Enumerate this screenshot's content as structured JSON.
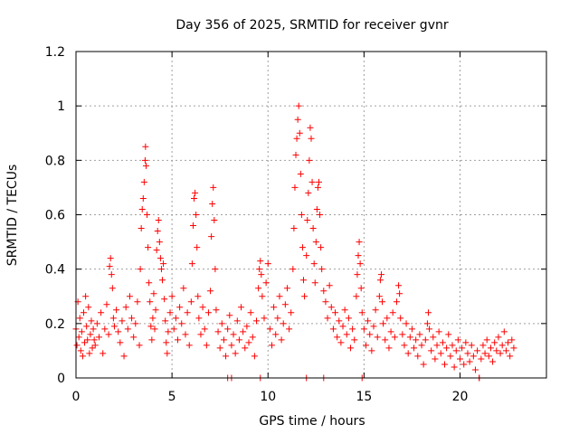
{
  "chart_data": {
    "type": "scatter",
    "title": "Day 356 of 2025, SRMTID for receiver gvnr",
    "xlabel": "GPS time / hours",
    "ylabel": "SRMTID / TECUs",
    "xlim": [
      0,
      24.5
    ],
    "ylim": [
      0,
      1.2
    ],
    "xticks": [
      0,
      5,
      10,
      15,
      20
    ],
    "xtick_labels": [
      "0",
      "5",
      "10",
      "15",
      "20"
    ],
    "yticks": [
      0,
      0.2,
      0.4,
      0.6,
      0.8,
      1,
      1.2
    ],
    "ytick_labels": [
      "0",
      "0.2",
      "0.4",
      "0.6",
      "0.8",
      "1",
      "1.2"
    ],
    "grid": true,
    "marker": "plus",
    "series": [
      {
        "name": "SRMTID",
        "color": "#ff0000",
        "points": [
          [
            0.0,
            0.18
          ],
          [
            0.05,
            0.12
          ],
          [
            0.1,
            0.28
          ],
          [
            0.15,
            0.15
          ],
          [
            0.2,
            0.22
          ],
          [
            0.25,
            0.1
          ],
          [
            0.3,
            0.17
          ],
          [
            0.35,
            0.08
          ],
          [
            0.4,
            0.24
          ],
          [
            0.45,
            0.13
          ],
          [
            0.5,
            0.3
          ],
          [
            0.55,
            0.19
          ],
          [
            0.6,
            0.14
          ],
          [
            0.65,
            0.26
          ],
          [
            0.7,
            0.09
          ],
          [
            0.75,
            0.16
          ],
          [
            0.8,
            0.21
          ],
          [
            0.85,
            0.11
          ],
          [
            0.9,
            0.18
          ],
          [
            0.95,
            0.14
          ],
          [
            1.0,
            0.12
          ],
          [
            1.1,
            0.2
          ],
          [
            1.2,
            0.15
          ],
          [
            1.3,
            0.24
          ],
          [
            1.4,
            0.09
          ],
          [
            1.5,
            0.18
          ],
          [
            1.6,
            0.27
          ],
          [
            1.7,
            0.16
          ],
          [
            1.75,
            0.41
          ],
          [
            1.8,
            0.44
          ],
          [
            1.85,
            0.38
          ],
          [
            1.9,
            0.33
          ],
          [
            1.95,
            0.22
          ],
          [
            2.0,
            0.19
          ],
          [
            2.1,
            0.25
          ],
          [
            2.2,
            0.17
          ],
          [
            2.3,
            0.13
          ],
          [
            2.4,
            0.21
          ],
          [
            2.5,
            0.08
          ],
          [
            2.6,
            0.26
          ],
          [
            2.7,
            0.18
          ],
          [
            2.8,
            0.3
          ],
          [
            2.9,
            0.22
          ],
          [
            3.0,
            0.15
          ],
          [
            3.1,
            0.2
          ],
          [
            3.2,
            0.28
          ],
          [
            3.3,
            0.12
          ],
          [
            3.35,
            0.4
          ],
          [
            3.4,
            0.55
          ],
          [
            3.45,
            0.62
          ],
          [
            3.5,
            0.66
          ],
          [
            3.55,
            0.72
          ],
          [
            3.6,
            0.8
          ],
          [
            3.62,
            0.85
          ],
          [
            3.65,
            0.78
          ],
          [
            3.7,
            0.6
          ],
          [
            3.75,
            0.48
          ],
          [
            3.8,
            0.35
          ],
          [
            3.85,
            0.28
          ],
          [
            3.9,
            0.19
          ],
          [
            3.95,
            0.14
          ],
          [
            4.0,
            0.22
          ],
          [
            4.05,
            0.31
          ],
          [
            4.1,
            0.18
          ],
          [
            4.15,
            0.25
          ],
          [
            4.2,
            0.47
          ],
          [
            4.25,
            0.54
          ],
          [
            4.3,
            0.58
          ],
          [
            4.35,
            0.5
          ],
          [
            4.4,
            0.44
          ],
          [
            4.45,
            0.4
          ],
          [
            4.5,
            0.36
          ],
          [
            4.55,
            0.42
          ],
          [
            4.6,
            0.29
          ],
          [
            4.65,
            0.21
          ],
          [
            4.7,
            0.13
          ],
          [
            4.75,
            0.09
          ],
          [
            4.8,
            0.17
          ],
          [
            4.9,
            0.24
          ],
          [
            5.0,
            0.3
          ],
          [
            5.1,
            0.18
          ],
          [
            5.2,
            0.22
          ],
          [
            5.3,
            0.14
          ],
          [
            5.4,
            0.26
          ],
          [
            5.5,
            0.2
          ],
          [
            5.6,
            0.33
          ],
          [
            5.7,
            0.16
          ],
          [
            5.8,
            0.24
          ],
          [
            5.9,
            0.12
          ],
          [
            6.0,
            0.28
          ],
          [
            6.05,
            0.42
          ],
          [
            6.1,
            0.56
          ],
          [
            6.15,
            0.66
          ],
          [
            6.2,
            0.68
          ],
          [
            6.25,
            0.6
          ],
          [
            6.3,
            0.48
          ],
          [
            6.35,
            0.3
          ],
          [
            6.4,
            0.22
          ],
          [
            6.5,
            0.16
          ],
          [
            6.6,
            0.26
          ],
          [
            6.7,
            0.18
          ],
          [
            6.8,
            0.12
          ],
          [
            6.9,
            0.24
          ],
          [
            7.0,
            0.32
          ],
          [
            7.05,
            0.52
          ],
          [
            7.1,
            0.64
          ],
          [
            7.15,
            0.7
          ],
          [
            7.2,
            0.58
          ],
          [
            7.25,
            0.4
          ],
          [
            7.3,
            0.25
          ],
          [
            7.4,
            0.17
          ],
          [
            7.5,
            0.11
          ],
          [
            7.6,
            0.2
          ],
          [
            7.7,
            0.14
          ],
          [
            7.8,
            0.08
          ],
          [
            7.9,
            0.18
          ],
          [
            8.0,
            0.23
          ],
          [
            8.1,
            0.12
          ],
          [
            8.2,
            0.16
          ],
          [
            8.3,
            0.09
          ],
          [
            8.4,
            0.21
          ],
          [
            8.5,
            0.14
          ],
          [
            8.6,
            0.26
          ],
          [
            8.7,
            0.17
          ],
          [
            8.8,
            0.11
          ],
          [
            8.9,
            0.19
          ],
          [
            9.0,
            0.13
          ],
          [
            9.1,
            0.24
          ],
          [
            9.2,
            0.15
          ],
          [
            9.3,
            0.08
          ],
          [
            9.4,
            0.21
          ],
          [
            9.5,
            0.33
          ],
          [
            9.55,
            0.4
          ],
          [
            9.6,
            0.43
          ],
          [
            9.65,
            0.38
          ],
          [
            9.7,
            0.3
          ],
          [
            9.8,
            0.22
          ],
          [
            9.9,
            0.35
          ],
          [
            10.0,
            0.42
          ],
          [
            10.1,
            0.18
          ],
          [
            10.2,
            0.12
          ],
          [
            10.3,
            0.26
          ],
          [
            10.4,
            0.16
          ],
          [
            10.5,
            0.22
          ],
          [
            10.6,
            0.3
          ],
          [
            10.7,
            0.14
          ],
          [
            10.8,
            0.2
          ],
          [
            10.9,
            0.27
          ],
          [
            11.0,
            0.33
          ],
          [
            11.1,
            0.18
          ],
          [
            11.2,
            0.24
          ],
          [
            11.3,
            0.4
          ],
          [
            11.35,
            0.55
          ],
          [
            11.4,
            0.7
          ],
          [
            11.45,
            0.82
          ],
          [
            11.5,
            0.88
          ],
          [
            11.55,
            0.95
          ],
          [
            11.6,
            1.0
          ],
          [
            11.65,
            0.9
          ],
          [
            11.7,
            0.75
          ],
          [
            11.75,
            0.6
          ],
          [
            11.8,
            0.48
          ],
          [
            11.85,
            0.36
          ],
          [
            11.9,
            0.3
          ],
          [
            12.0,
            0.45
          ],
          [
            12.05,
            0.58
          ],
          [
            12.1,
            0.68
          ],
          [
            12.15,
            0.8
          ],
          [
            12.2,
            0.92
          ],
          [
            12.25,
            0.88
          ],
          [
            12.3,
            0.72
          ],
          [
            12.35,
            0.55
          ],
          [
            12.4,
            0.42
          ],
          [
            12.45,
            0.35
          ],
          [
            12.5,
            0.5
          ],
          [
            12.55,
            0.62
          ],
          [
            12.6,
            0.7
          ],
          [
            12.65,
            0.72
          ],
          [
            12.7,
            0.6
          ],
          [
            12.75,
            0.48
          ],
          [
            12.8,
            0.4
          ],
          [
            12.9,
            0.32
          ],
          [
            13.0,
            0.28
          ],
          [
            13.1,
            0.22
          ],
          [
            13.2,
            0.34
          ],
          [
            13.3,
            0.26
          ],
          [
            13.4,
            0.18
          ],
          [
            13.5,
            0.24
          ],
          [
            13.6,
            0.15
          ],
          [
            13.7,
            0.21
          ],
          [
            13.8,
            0.13
          ],
          [
            13.9,
            0.19
          ],
          [
            14.0,
            0.25
          ],
          [
            14.1,
            0.16
          ],
          [
            14.2,
            0.22
          ],
          [
            14.3,
            0.11
          ],
          [
            14.4,
            0.18
          ],
          [
            14.5,
            0.14
          ],
          [
            14.6,
            0.3
          ],
          [
            14.65,
            0.38
          ],
          [
            14.7,
            0.45
          ],
          [
            14.75,
            0.5
          ],
          [
            14.8,
            0.42
          ],
          [
            14.85,
            0.33
          ],
          [
            14.9,
            0.24
          ],
          [
            15.0,
            0.18
          ],
          [
            15.1,
            0.12
          ],
          [
            15.2,
            0.21
          ],
          [
            15.3,
            0.16
          ],
          [
            15.4,
            0.1
          ],
          [
            15.5,
            0.19
          ],
          [
            15.6,
            0.25
          ],
          [
            15.7,
            0.15
          ],
          [
            15.8,
            0.3
          ],
          [
            15.85,
            0.36
          ],
          [
            15.9,
            0.38
          ],
          [
            15.95,
            0.28
          ],
          [
            16.0,
            0.2
          ],
          [
            16.1,
            0.14
          ],
          [
            16.2,
            0.22
          ],
          [
            16.3,
            0.11
          ],
          [
            16.4,
            0.17
          ],
          [
            16.5,
            0.24
          ],
          [
            16.6,
            0.15
          ],
          [
            16.7,
            0.28
          ],
          [
            16.8,
            0.34
          ],
          [
            16.85,
            0.31
          ],
          [
            16.9,
            0.22
          ],
          [
            17.0,
            0.16
          ],
          [
            17.1,
            0.12
          ],
          [
            17.2,
            0.2
          ],
          [
            17.3,
            0.09
          ],
          [
            17.4,
            0.15
          ],
          [
            17.5,
            0.18
          ],
          [
            17.6,
            0.11
          ],
          [
            17.7,
            0.14
          ],
          [
            17.8,
            0.08
          ],
          [
            17.9,
            0.16
          ],
          [
            18.0,
            0.12
          ],
          [
            18.1,
            0.05
          ],
          [
            18.2,
            0.14
          ],
          [
            18.3,
            0.2
          ],
          [
            18.35,
            0.24
          ],
          [
            18.4,
            0.18
          ],
          [
            18.5,
            0.1
          ],
          [
            18.6,
            0.15
          ],
          [
            18.7,
            0.07
          ],
          [
            18.8,
            0.12
          ],
          [
            18.9,
            0.17
          ],
          [
            19.0,
            0.09
          ],
          [
            19.1,
            0.13
          ],
          [
            19.2,
            0.05
          ],
          [
            19.3,
            0.11
          ],
          [
            19.4,
            0.16
          ],
          [
            19.5,
            0.08
          ],
          [
            19.6,
            0.12
          ],
          [
            19.7,
            0.04
          ],
          [
            19.8,
            0.1
          ],
          [
            19.9,
            0.14
          ],
          [
            20.0,
            0.07
          ],
          [
            20.1,
            0.11
          ],
          [
            20.2,
            0.05
          ],
          [
            20.3,
            0.13
          ],
          [
            20.4,
            0.09
          ],
          [
            20.5,
            0.06
          ],
          [
            20.6,
            0.12
          ],
          [
            20.7,
            0.08
          ],
          [
            20.8,
            0.03
          ],
          [
            20.9,
            0.1
          ],
          [
            21.0,
            0.0
          ],
          [
            21.1,
            0.07
          ],
          [
            21.2,
            0.12
          ],
          [
            21.3,
            0.09
          ],
          [
            21.4,
            0.14
          ],
          [
            21.5,
            0.08
          ],
          [
            21.6,
            0.11
          ],
          [
            21.7,
            0.06
          ],
          [
            21.8,
            0.13
          ],
          [
            21.9,
            0.1
          ],
          [
            22.0,
            0.15
          ],
          [
            22.1,
            0.09
          ],
          [
            22.2,
            0.12
          ],
          [
            22.3,
            0.17
          ],
          [
            22.4,
            0.1
          ],
          [
            22.5,
            0.13
          ],
          [
            22.6,
            0.08
          ],
          [
            22.7,
            0.14
          ],
          [
            22.8,
            0.11
          ],
          [
            7.9,
            0.0
          ],
          [
            8.1,
            0.0
          ],
          [
            9.6,
            0.0
          ],
          [
            12.0,
            0.0
          ],
          [
            12.9,
            0.0
          ],
          [
            14.9,
            0.0
          ],
          [
            21.0,
            0.0
          ]
        ]
      }
    ]
  }
}
